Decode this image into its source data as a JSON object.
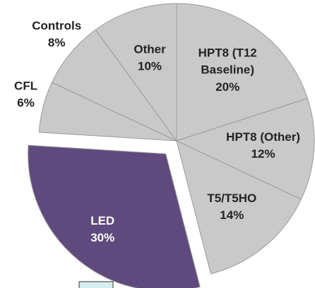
{
  "chart_data": {
    "type": "pie",
    "categories": [
      "HPT8 (T12 Baseline)",
      "HPT8 (Other)",
      "T5/T5HO",
      "LED",
      "CFL",
      "Controls",
      "Other"
    ],
    "values": [
      20,
      12,
      14,
      30,
      6,
      8,
      10
    ],
    "value_labels": [
      "20%",
      "12%",
      "14%",
      "30%",
      "6%",
      "8%",
      "10%"
    ],
    "colors": [
      "#c9c9c9",
      "#c9c9c9",
      "#c9c9c9",
      "#5f4a7e",
      "#c9c9c9",
      "#c9c9c9",
      "#c9c9c9"
    ],
    "exploded": [
      3
    ]
  }
}
